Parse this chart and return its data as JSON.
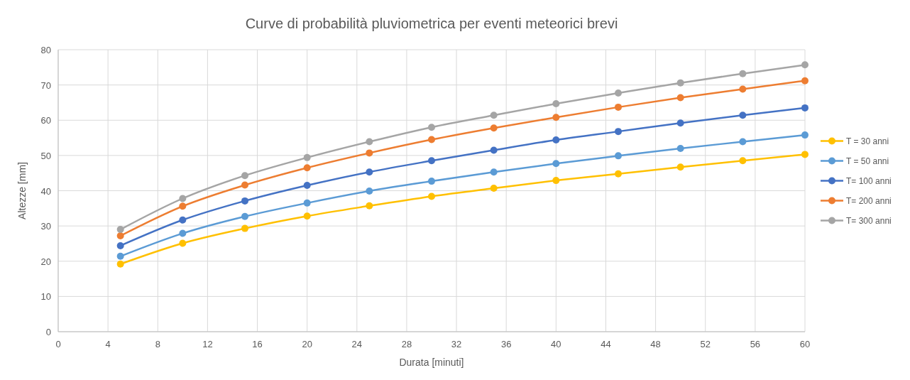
{
  "chart_data": {
    "type": "line",
    "title": "Curve di probabilità pluviometrica per eventi meteorici brevi",
    "xlabel": "Durata [minuti]",
    "ylabel": "Altezze [mm]",
    "x": [
      5,
      10,
      15,
      20,
      25,
      30,
      35,
      40,
      45,
      50,
      55,
      60
    ],
    "series": [
      {
        "name": "T = 30 anni",
        "color": "#ffc000",
        "values": [
          19.2,
          25.1,
          29.3,
          32.8,
          35.7,
          38.4,
          40.7,
          42.9,
          44.8,
          46.7,
          48.5,
          50.3
        ]
      },
      {
        "name": "T = 50 anni",
        "color": "#5b9bd5",
        "values": [
          21.4,
          27.9,
          32.7,
          36.5,
          39.9,
          42.7,
          45.3,
          47.7,
          49.9,
          52.0,
          53.9,
          55.8
        ]
      },
      {
        "name": "T= 100 anni",
        "color": "#4472c4",
        "values": [
          24.4,
          31.7,
          37.1,
          41.5,
          45.3,
          48.5,
          51.5,
          54.4,
          56.8,
          59.2,
          61.4,
          63.5
        ]
      },
      {
        "name": "T= 200 anni",
        "color": "#ed7d31",
        "values": [
          27.2,
          35.6,
          41.6,
          46.5,
          50.7,
          54.5,
          57.8,
          60.8,
          63.7,
          66.4,
          68.8,
          71.2
        ]
      },
      {
        "name": "T= 300 anni",
        "color": "#a5a5a5",
        "values": [
          29.0,
          37.8,
          44.3,
          49.4,
          53.9,
          58.0,
          61.4,
          64.7,
          67.7,
          70.6,
          73.2,
          75.7
        ]
      }
    ],
    "xlim": [
      0,
      60
    ],
    "xticks": [
      0,
      4,
      8,
      12,
      16,
      20,
      24,
      28,
      32,
      36,
      40,
      44,
      48,
      52,
      56,
      60
    ],
    "ylim": [
      0,
      80
    ],
    "yticks": [
      0,
      10,
      20,
      30,
      40,
      50,
      60,
      70,
      80
    ],
    "grid": true,
    "legend": "right",
    "marker": "circle",
    "line_style": "solid"
  }
}
